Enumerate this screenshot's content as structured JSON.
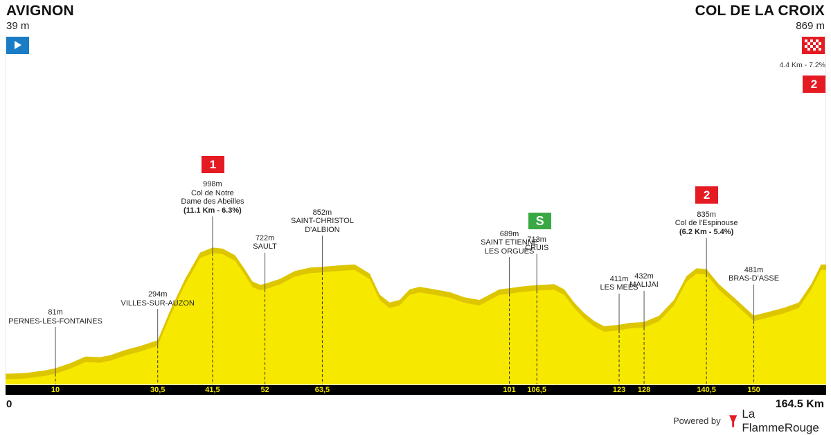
{
  "header": {
    "start_name": "AVIGNON",
    "start_altitude": "39 m",
    "finish_name": "COL DE LA CROIX",
    "finish_altitude": "869 m",
    "finish_climb": "4.4 Km - 7.2%",
    "finish_climb_category": "2",
    "start_icon": "play-icon",
    "finish_icon": "checkered-flag-icon"
  },
  "colors": {
    "profile_fill": "#f7e800",
    "profile_slope": "#ddc600",
    "category_flag": "#e41b23",
    "sprint_flag": "#3aa843",
    "start_flag": "#1a7cc4",
    "axis_bar": "#000000",
    "axis_text": "#f5e800"
  },
  "points": [
    {
      "km": 10,
      "km_label": "10",
      "altitude": "81m",
      "lines": [
        "PERNES-LES-FONTAINES"
      ]
    },
    {
      "km": 30.5,
      "km_label": "30,5",
      "altitude": "294m",
      "lines": [
        "VILLES-SUR-AUZON"
      ]
    },
    {
      "km": 41.5,
      "km_label": "41,5",
      "altitude": "998m",
      "lines": [
        "Col de Notre",
        "Dame des Abeilles"
      ],
      "bold": "(11.1 Km - 6.3%)",
      "flag": "1"
    },
    {
      "km": 52,
      "km_label": "52",
      "altitude": "722m",
      "lines": [
        "SAULT"
      ]
    },
    {
      "km": 63.5,
      "km_label": "63,5",
      "altitude": "852m",
      "lines": [
        "SAINT-CHRISTOL",
        "D'ALBION"
      ]
    },
    {
      "km": 101,
      "km_label": "101",
      "altitude": "689m",
      "lines": [
        "SAINT ETIENNE",
        "LES ORGUES"
      ]
    },
    {
      "km": 106.5,
      "km_label": "106,5",
      "altitude": "713m",
      "lines": [
        "CRUIS"
      ],
      "sprint": "S"
    },
    {
      "km": 123,
      "km_label": "123",
      "altitude": "411m",
      "lines": [
        "LES MEES"
      ]
    },
    {
      "km": 128,
      "km_label": "128",
      "altitude": "432m",
      "lines": [
        "MALIJAI"
      ]
    },
    {
      "km": 140.5,
      "km_label": "140,5",
      "altitude": "835m",
      "lines": [
        "Col de l'Espinouse"
      ],
      "bold": "(6.2 Km - 5.4%)",
      "flag": "2"
    },
    {
      "km": 150,
      "km_label": "150",
      "altitude": "481m",
      "lines": [
        "BRAS-D'ASSE"
      ]
    }
  ],
  "axis": {
    "start_label": "0",
    "end_label": "164.5 Km"
  },
  "footer": {
    "powered_by": "Powered by",
    "brand": "La FlammeRouge",
    "brand_icon": "flame-rouge-logo-icon"
  },
  "chart_data": {
    "type": "area",
    "title": "",
    "xlabel": "",
    "ylabel": "",
    "xlim": [
      0,
      164.5
    ],
    "x": [
      0,
      4,
      8,
      10,
      13,
      16,
      19,
      21,
      24,
      27,
      30.5,
      33,
      36,
      39,
      41.5,
      43.5,
      46,
      48,
      49.5,
      51,
      52,
      55,
      58,
      61,
      63.5,
      66,
      70,
      73,
      75,
      77,
      79,
      81,
      83,
      86,
      89,
      92,
      95,
      97,
      99,
      101,
      103,
      106.5,
      110,
      112,
      114,
      116,
      118,
      120,
      123,
      125,
      128,
      131,
      134,
      136.5,
      138.5,
      140.5,
      143,
      146,
      150,
      153,
      156,
      159,
      161.5,
      163.5,
      164.5
    ],
    "y": [
      39,
      45,
      65,
      81,
      120,
      170,
      165,
      180,
      220,
      250,
      294,
      520,
      760,
      960,
      998,
      990,
      940,
      830,
      740,
      715,
      722,
      760,
      820,
      845,
      852,
      860,
      870,
      800,
      640,
      580,
      600,
      680,
      700,
      680,
      660,
      620,
      600,
      640,
      680,
      689,
      700,
      713,
      720,
      680,
      580,
      500,
      440,
      400,
      411,
      425,
      432,
      480,
      600,
      780,
      840,
      835,
      720,
      620,
      481,
      510,
      540,
      580,
      720,
      870,
      869
    ],
    "ylim": [
      0,
      2000
    ],
    "start_altitude_m": 39,
    "finish_altitude_m": 869,
    "x_ticks": [
      10,
      30.5,
      41.5,
      52,
      63.5,
      101,
      106.5,
      123,
      128,
      140.5,
      150
    ]
  }
}
